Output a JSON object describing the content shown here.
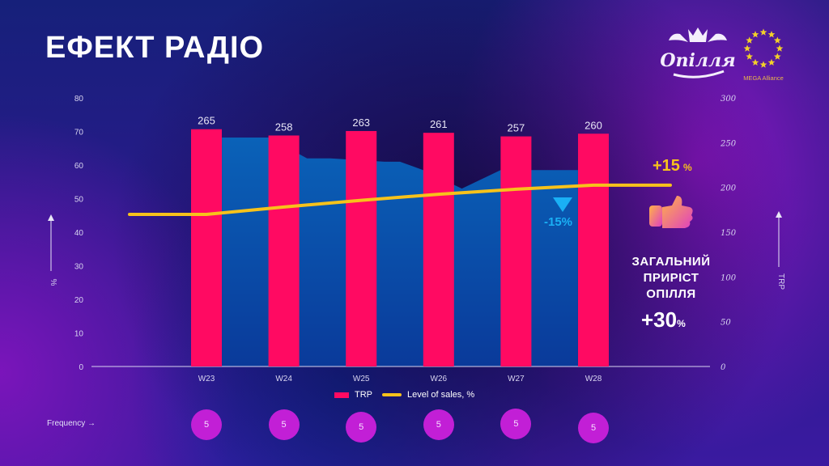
{
  "header": {
    "title": "ЕФЕКТ РАДІО",
    "brand_logo_text": "Опілля",
    "partner_logo_text": "MEGA Alliance"
  },
  "colors": {
    "trp_bar": "#ff0a62",
    "sales_line": "#f7c21b",
    "area": "#0a5fb5",
    "frequency_bubble": "#c21fd6",
    "negative_marker": "#1ab0f5"
  },
  "chart_data": {
    "type": "bar",
    "title": "ЕФЕКТ РАДІО",
    "categories": [
      "W23",
      "W24",
      "W25",
      "W26",
      "W27",
      "W28"
    ],
    "series": [
      {
        "name": "TRP",
        "type": "bar",
        "axis": "right",
        "values": [
          265,
          258,
          263,
          261,
          257,
          260
        ]
      },
      {
        "name": "Level of sales, %",
        "type": "line",
        "axis": "left",
        "points": [
          {
            "x": "start",
            "y": 45.3
          },
          {
            "x": "W23",
            "y": 45.3
          },
          {
            "x": "W24",
            "y": 47.5
          },
          {
            "x": "W25",
            "y": 49.5
          },
          {
            "x": "W26",
            "y": 51.3
          },
          {
            "x": "W27",
            "y": 52.8
          },
          {
            "x": "W28",
            "y": 54.0
          },
          {
            "x": "end",
            "y": 54.0
          }
        ]
      },
      {
        "name": "background area",
        "type": "area",
        "axis": "left",
        "points": [
          {
            "x": 23.2,
            "y": 68.2
          },
          {
            "x": 23.8,
            "y": 68.2
          },
          {
            "x": 24.3,
            "y": 62.0
          },
          {
            "x": 24.6,
            "y": 62.0
          },
          {
            "x": 25.3,
            "y": 61.0
          },
          {
            "x": 25.5,
            "y": 61.0
          },
          {
            "x": 25.8,
            "y": 58.5
          },
          {
            "x": 26.3,
            "y": 53.0
          },
          {
            "x": 26.8,
            "y": 58.5
          },
          {
            "x": 27.8,
            "y": 58.5
          }
        ]
      }
    ],
    "y_left": {
      "label": "%",
      "ylim": [
        0,
        80
      ],
      "ticks": [
        0,
        10,
        20,
        30,
        40,
        50,
        60,
        70,
        80
      ]
    },
    "y_right": {
      "label": "TRP",
      "ylim": [
        0,
        300
      ],
      "ticks": [
        0,
        50,
        100,
        150,
        200,
        250,
        300
      ]
    },
    "xlabel": "",
    "legend": {
      "position": "bottom",
      "entries": [
        "TRP",
        "Level of sales, %"
      ]
    },
    "annotations": {
      "sales_growth": {
        "value": "+15",
        "unit": "%"
      },
      "area_drop": "-15%",
      "summary_lines": [
        "ЗАГАЛЬНИЙ",
        "ПРИРІСТ",
        "ОПІЛЛЯ"
      ],
      "summary_value": "+30",
      "summary_unit": "%"
    },
    "grid": false
  },
  "frequency": {
    "label": "Frequency",
    "values": [
      "5",
      "5",
      "5",
      "5",
      "5",
      "5"
    ]
  }
}
